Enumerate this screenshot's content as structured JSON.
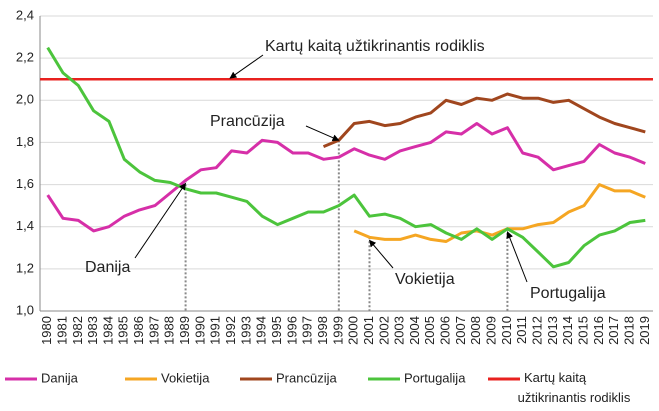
{
  "chart_data": {
    "type": "line",
    "categories": [
      "1980",
      "1981",
      "1982",
      "1983",
      "1984",
      "1985",
      "1986",
      "1987",
      "1988",
      "1989",
      "1990",
      "1991",
      "1992",
      "1993",
      "1994",
      "1995",
      "1996",
      "1997",
      "1998",
      "1999",
      "2000",
      "2001",
      "2002",
      "2003",
      "2004",
      "2005",
      "2006",
      "2007",
      "2008",
      "2009",
      "2010",
      "2011",
      "2012",
      "2013",
      "2014",
      "2015",
      "2016",
      "2017",
      "2018",
      "2019"
    ],
    "series": [
      {
        "name": "Danija",
        "color": "#d62fa8",
        "values": [
          1.55,
          1.44,
          1.43,
          1.38,
          1.4,
          1.45,
          1.48,
          1.5,
          1.56,
          1.62,
          1.67,
          1.68,
          1.76,
          1.75,
          1.81,
          1.8,
          1.75,
          1.75,
          1.72,
          1.73,
          1.77,
          1.74,
          1.72,
          1.76,
          1.78,
          1.8,
          1.85,
          1.84,
          1.89,
          1.84,
          1.87,
          1.75,
          1.73,
          1.67,
          1.69,
          1.71,
          1.79,
          1.75,
          1.73,
          1.7
        ]
      },
      {
        "name": "Vokietija",
        "color": "#f5a623",
        "values": [
          null,
          null,
          null,
          null,
          null,
          null,
          null,
          null,
          null,
          null,
          null,
          null,
          null,
          null,
          null,
          null,
          null,
          null,
          null,
          null,
          1.38,
          1.35,
          1.34,
          1.34,
          1.36,
          1.34,
          1.33,
          1.37,
          1.38,
          1.36,
          1.39,
          1.39,
          1.41,
          1.42,
          1.47,
          1.5,
          1.6,
          1.57,
          1.57,
          1.54
        ]
      },
      {
        "name": "Prancūzija",
        "color": "#a0461e",
        "values": [
          null,
          null,
          null,
          null,
          null,
          null,
          null,
          null,
          null,
          null,
          null,
          null,
          null,
          null,
          null,
          null,
          null,
          null,
          1.78,
          1.81,
          1.89,
          1.9,
          1.88,
          1.89,
          1.92,
          1.94,
          2.0,
          1.98,
          2.01,
          2.0,
          2.03,
          2.01,
          2.01,
          1.99,
          2.0,
          1.96,
          1.92,
          1.89,
          1.87,
          1.85
        ]
      },
      {
        "name": "Portugalija",
        "color": "#4cc43c",
        "values": [
          2.25,
          2.13,
          2.07,
          1.95,
          1.9,
          1.72,
          1.66,
          1.62,
          1.61,
          1.58,
          1.56,
          1.56,
          1.54,
          1.52,
          1.45,
          1.41,
          1.44,
          1.47,
          1.47,
          1.5,
          1.55,
          1.45,
          1.46,
          1.44,
          1.4,
          1.41,
          1.37,
          1.34,
          1.39,
          1.34,
          1.39,
          1.35,
          1.28,
          1.21,
          1.23,
          1.31,
          1.36,
          1.38,
          1.42,
          1.43
        ]
      }
    ],
    "reference_line": {
      "name": "Kartų kaitą užtikrinantis rodiklis",
      "value": 2.1,
      "color": "#e8211f"
    },
    "annotations": [
      "Prancūzija",
      "Danija",
      "Vokietija",
      "Portugalija"
    ],
    "ylim": [
      1.0,
      2.4
    ],
    "yticks": [
      {
        "value": 1.0,
        "label": "1,0"
      },
      {
        "value": 1.2,
        "label": "1,2"
      },
      {
        "value": 1.4,
        "label": "1,4"
      },
      {
        "value": 1.6,
        "label": "1,6"
      },
      {
        "value": 1.8,
        "label": "1,8"
      },
      {
        "value": 2.0,
        "label": "2,0"
      },
      {
        "value": 2.2,
        "label": "2,2"
      },
      {
        "value": 2.4,
        "label": "2,4"
      }
    ],
    "grid": true,
    "legend": "bottom"
  }
}
